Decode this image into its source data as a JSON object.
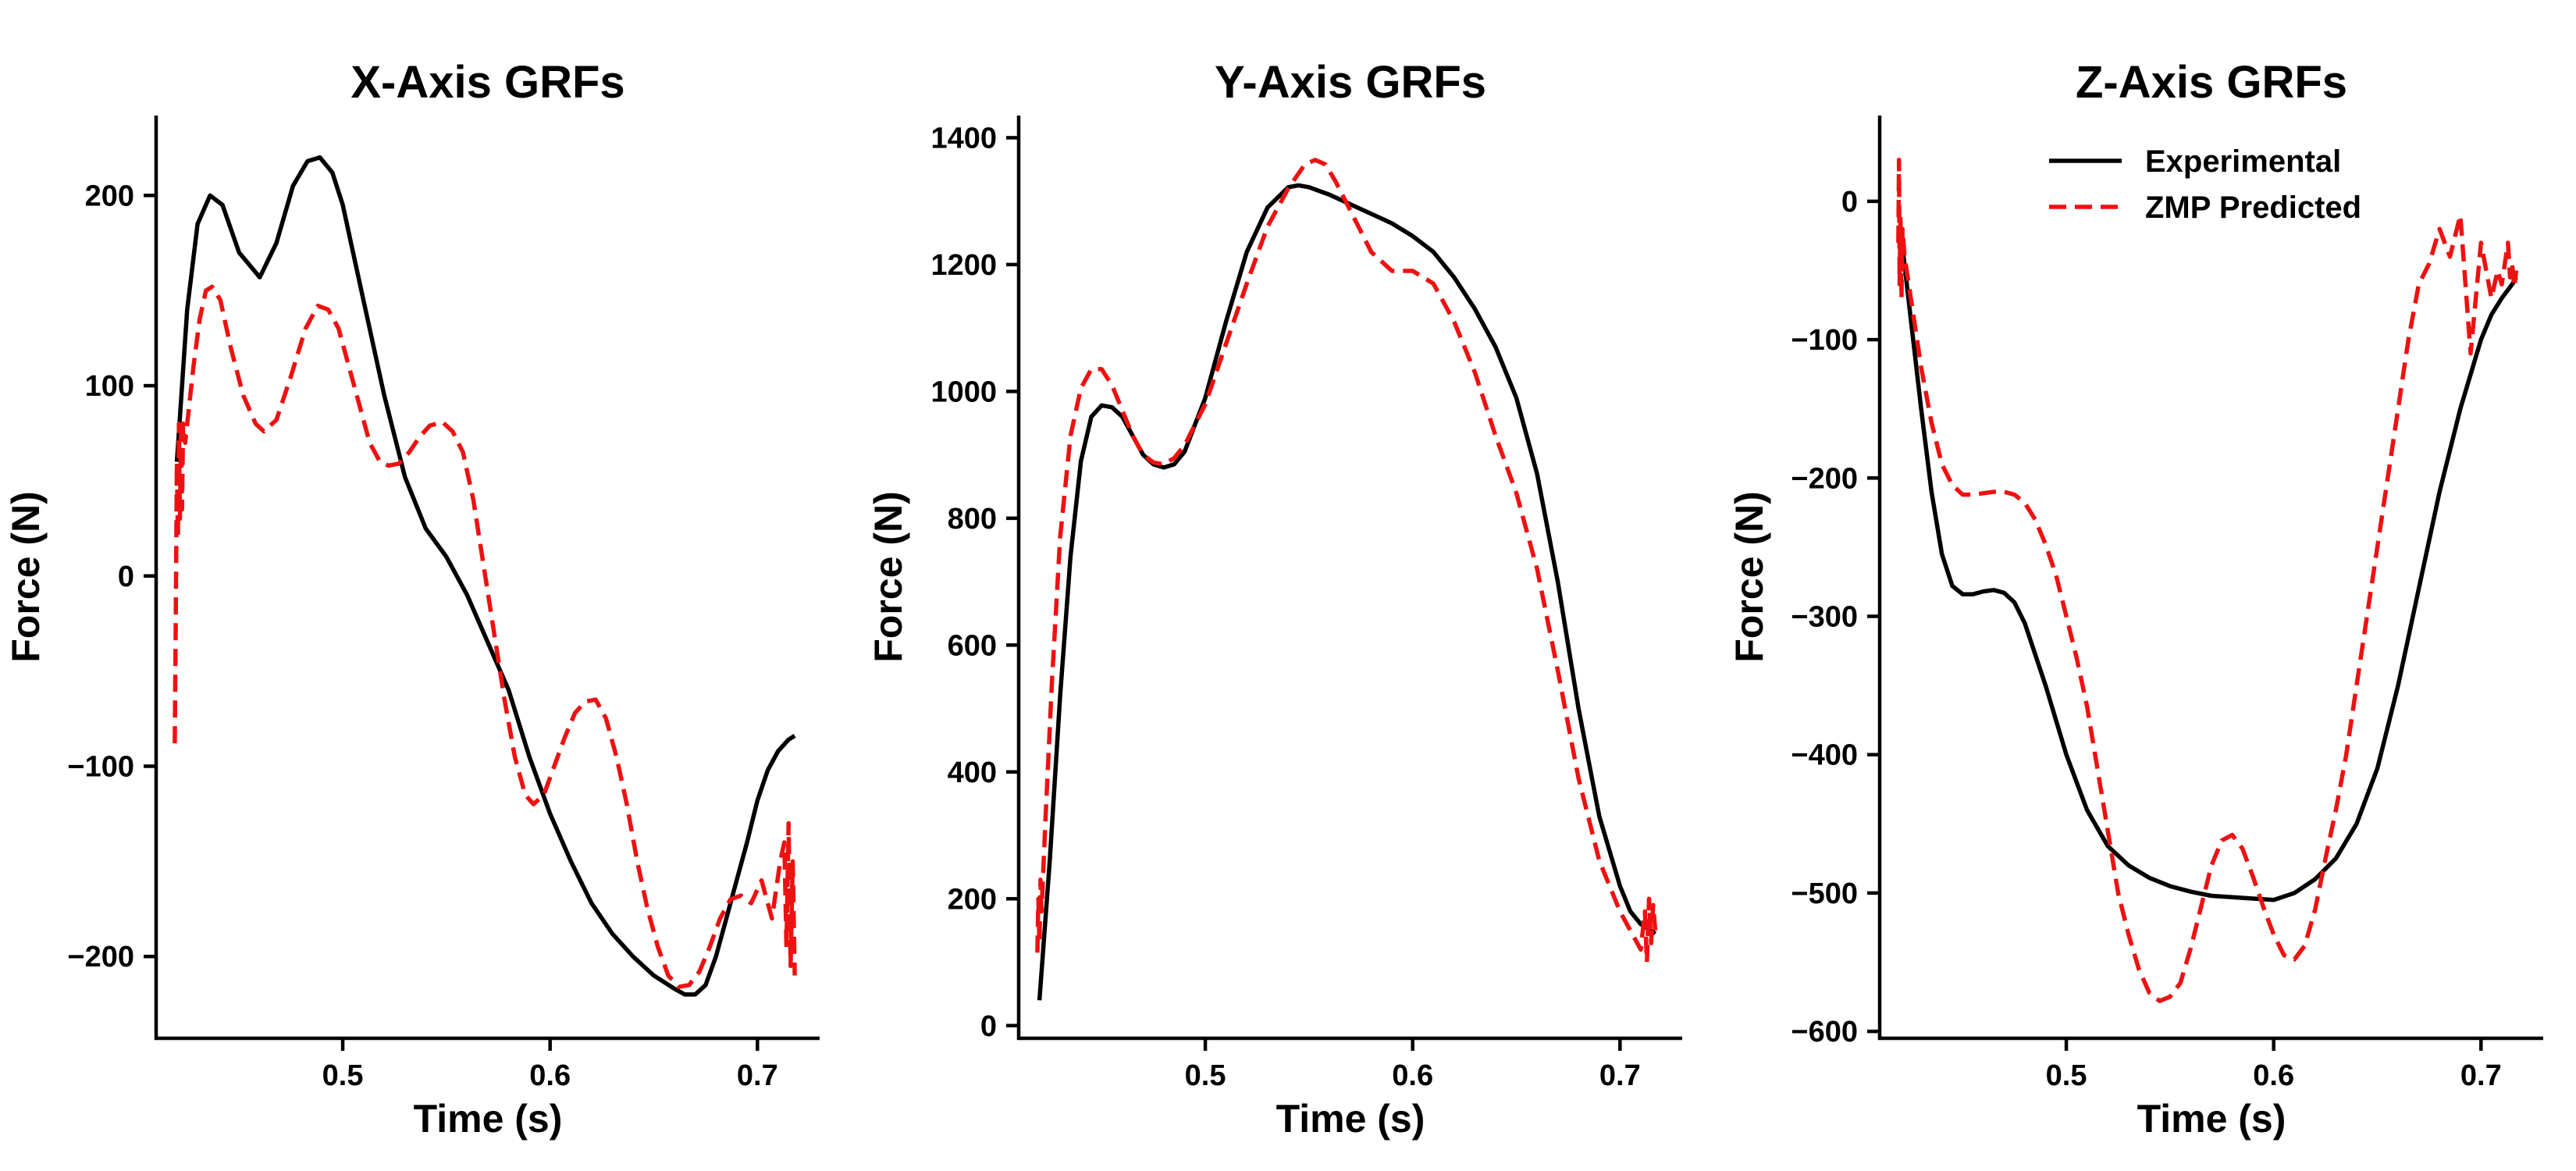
{
  "colors": {
    "experimental": "#000000",
    "zmp": "#ee1111"
  },
  "legend": {
    "placement": "top-right",
    "experimental": "Experimental",
    "zmp": "ZMP Predicted"
  },
  "chart_data": [
    {
      "type": "line",
      "title": "X-Axis GRFs",
      "xlabel": "Time (s)",
      "ylabel": "Force (N)",
      "xlim": [
        0.41,
        0.73
      ],
      "ylim": [
        -243,
        242
      ],
      "xticks": [
        0.5,
        0.6,
        0.7
      ],
      "xtick_labels": [
        "0.5",
        "0.6",
        "0.7"
      ],
      "yticks": [
        -200,
        -100,
        0,
        100,
        200
      ],
      "ytick_labels": [
        "−200",
        "−100",
        "0",
        "100",
        "200"
      ],
      "grid": false,
      "legend": false,
      "series": [
        {
          "name": "Experimental",
          "style": "solid",
          "x": [
            0.42,
            0.425,
            0.43,
            0.436,
            0.442,
            0.45,
            0.46,
            0.468,
            0.476,
            0.483,
            0.489,
            0.495,
            0.5,
            0.505,
            0.512,
            0.52,
            0.53,
            0.54,
            0.55,
            0.56,
            0.57,
            0.58,
            0.59,
            0.6,
            0.61,
            0.62,
            0.63,
            0.64,
            0.65,
            0.66,
            0.665,
            0.67,
            0.675,
            0.68,
            0.685,
            0.69,
            0.695,
            0.7,
            0.705,
            0.71,
            0.715,
            0.718
          ],
          "y": [
            60,
            140,
            185,
            200,
            195,
            170,
            157,
            175,
            205,
            218,
            220,
            212,
            195,
            170,
            135,
            95,
            52,
            25,
            10,
            -10,
            -35,
            -60,
            -95,
            -125,
            -150,
            -172,
            -188,
            -200,
            -210,
            -217,
            -220,
            -220,
            -215,
            -200,
            -180,
            -160,
            -140,
            -118,
            -102,
            -92,
            -86,
            -84
          ]
        },
        {
          "name": "ZMP Predicted",
          "style": "dashed",
          "x": [
            0.419,
            0.4195,
            0.42,
            0.4205,
            0.421,
            0.4215,
            0.422,
            0.4225,
            0.423,
            0.424,
            0.426,
            0.428,
            0.431,
            0.434,
            0.437,
            0.441,
            0.446,
            0.452,
            0.458,
            0.462,
            0.468,
            0.475,
            0.482,
            0.488,
            0.493,
            0.498,
            0.503,
            0.508,
            0.513,
            0.518,
            0.522,
            0.527,
            0.532,
            0.537,
            0.542,
            0.548,
            0.553,
            0.558,
            0.563,
            0.568,
            0.573,
            0.578,
            0.583,
            0.588,
            0.592,
            0.597,
            0.602,
            0.607,
            0.612,
            0.617,
            0.622,
            0.627,
            0.632,
            0.637,
            0.642,
            0.647,
            0.652,
            0.657,
            0.662,
            0.667,
            0.672,
            0.677,
            0.682,
            0.687,
            0.692,
            0.697,
            0.702,
            0.707,
            0.711,
            0.713,
            0.714,
            0.715,
            0.716,
            0.717,
            0.718
          ],
          "y": [
            -88,
            -20,
            60,
            20,
            80,
            30,
            75,
            35,
            80,
            70,
            90,
            110,
            135,
            150,
            152,
            145,
            120,
            95,
            80,
            76,
            82,
            105,
            130,
            142,
            140,
            130,
            110,
            90,
            70,
            60,
            58,
            59,
            65,
            73,
            79,
            81,
            76,
            65,
            40,
            5,
            -30,
            -65,
            -95,
            -115,
            -120,
            -115,
            -100,
            -85,
            -72,
            -66,
            -65,
            -75,
            -95,
            -120,
            -150,
            -175,
            -195,
            -210,
            -216,
            -215,
            -208,
            -195,
            -180,
            -170,
            -168,
            -172,
            -160,
            -180,
            -150,
            -140,
            -195,
            -130,
            -205,
            -150,
            -210
          ]
        }
      ]
    },
    {
      "type": "line",
      "title": "Y-Axis GRFs",
      "xlabel": "Time (s)",
      "ylabel": "Force (N)",
      "xlim": [
        0.41,
        0.73
      ],
      "ylim": [
        -20,
        1435
      ],
      "xticks": [
        0.5,
        0.6,
        0.7
      ],
      "xtick_labels": [
        "0.5",
        "0.6",
        "0.7"
      ],
      "yticks": [
        0,
        200,
        400,
        600,
        800,
        1000,
        1200,
        1400
      ],
      "ytick_labels": [
        "0",
        "200",
        "400",
        "600",
        "800",
        "1000",
        "1200",
        "1400"
      ],
      "grid": false,
      "legend": false,
      "series": [
        {
          "name": "Experimental",
          "style": "solid",
          "x": [
            0.42,
            0.425,
            0.43,
            0.435,
            0.44,
            0.445,
            0.45,
            0.455,
            0.46,
            0.465,
            0.47,
            0.475,
            0.48,
            0.485,
            0.49,
            0.5,
            0.51,
            0.52,
            0.53,
            0.54,
            0.545,
            0.55,
            0.56,
            0.57,
            0.58,
            0.59,
            0.6,
            0.61,
            0.62,
            0.63,
            0.64,
            0.65,
            0.66,
            0.67,
            0.68,
            0.69,
            0.7,
            0.705,
            0.71,
            0.715,
            0.717
          ],
          "y": [
            40,
            260,
            520,
            740,
            890,
            960,
            978,
            975,
            960,
            930,
            900,
            885,
            880,
            885,
            905,
            990,
            1110,
            1220,
            1290,
            1322,
            1325,
            1322,
            1310,
            1295,
            1280,
            1265,
            1245,
            1220,
            1180,
            1130,
            1070,
            990,
            870,
            700,
            500,
            330,
            220,
            180,
            160,
            150,
            145
          ]
        },
        {
          "name": "ZMP Predicted",
          "style": "dashed",
          "x": [
            0.419,
            0.4195,
            0.42,
            0.4205,
            0.421,
            0.423,
            0.426,
            0.43,
            0.435,
            0.44,
            0.445,
            0.45,
            0.455,
            0.46,
            0.465,
            0.47,
            0.475,
            0.48,
            0.485,
            0.49,
            0.5,
            0.51,
            0.52,
            0.53,
            0.54,
            0.548,
            0.553,
            0.558,
            0.563,
            0.57,
            0.58,
            0.59,
            0.6,
            0.61,
            0.62,
            0.63,
            0.64,
            0.65,
            0.66,
            0.67,
            0.68,
            0.69,
            0.7,
            0.705,
            0.71,
            0.712,
            0.713,
            0.714,
            0.715,
            0.716,
            0.717
          ],
          "y": [
            115,
            200,
            130,
            230,
            180,
            330,
            540,
            770,
            930,
            1005,
            1035,
            1035,
            1010,
            970,
            930,
            900,
            888,
            885,
            895,
            915,
            980,
            1075,
            1170,
            1260,
            1320,
            1358,
            1365,
            1358,
            1330,
            1285,
            1220,
            1190,
            1190,
            1170,
            1110,
            1030,
            930,
            840,
            720,
            560,
            390,
            260,
            180,
            150,
            120,
            180,
            100,
            200,
            130,
            190,
            150
          ]
        }
      ]
    },
    {
      "type": "line",
      "title": "Z-Axis GRFs",
      "xlabel": "Time (s)",
      "ylabel": "Force (N)",
      "xlim": [
        0.41,
        0.73
      ],
      "ylim": [
        -605,
        62
      ],
      "xticks": [
        0.5,
        0.6,
        0.7
      ],
      "xtick_labels": [
        "0.5",
        "0.6",
        "0.7"
      ],
      "yticks": [
        -600,
        -500,
        -400,
        -300,
        -200,
        -100,
        0
      ],
      "ytick_labels": [
        "−600",
        "−500",
        "−400",
        "−300",
        "−200",
        "−100",
        "0"
      ],
      "grid": false,
      "legend": true,
      "series": [
        {
          "name": "Experimental",
          "style": "solid",
          "x": [
            0.42,
            0.425,
            0.43,
            0.435,
            0.44,
            0.445,
            0.45,
            0.455,
            0.46,
            0.465,
            0.47,
            0.475,
            0.48,
            0.49,
            0.5,
            0.51,
            0.52,
            0.53,
            0.54,
            0.55,
            0.56,
            0.57,
            0.58,
            0.59,
            0.6,
            0.61,
            0.62,
            0.63,
            0.64,
            0.65,
            0.66,
            0.67,
            0.68,
            0.69,
            0.7,
            0.705,
            0.71,
            0.715,
            0.717
          ],
          "y": [
            -20,
            -85,
            -150,
            -210,
            -255,
            -278,
            -284,
            -284,
            -282,
            -281,
            -283,
            -290,
            -305,
            -350,
            -400,
            -440,
            -466,
            -480,
            -489,
            -495,
            -499,
            -502,
            -503,
            -504,
            -505,
            -500,
            -490,
            -475,
            -450,
            -410,
            -350,
            -280,
            -210,
            -150,
            -100,
            -82,
            -70,
            -60,
            -55
          ]
        },
        {
          "name": "ZMP Predicted",
          "style": "dashed",
          "x": [
            0.419,
            0.4193,
            0.4196,
            0.42,
            0.4205,
            0.421,
            0.422,
            0.424,
            0.427,
            0.43,
            0.435,
            0.44,
            0.445,
            0.45,
            0.455,
            0.46,
            0.465,
            0.47,
            0.475,
            0.48,
            0.485,
            0.49,
            0.495,
            0.5,
            0.505,
            0.51,
            0.515,
            0.52,
            0.525,
            0.53,
            0.535,
            0.54,
            0.545,
            0.55,
            0.555,
            0.56,
            0.565,
            0.57,
            0.575,
            0.58,
            0.585,
            0.59,
            0.595,
            0.6,
            0.605,
            0.61,
            0.615,
            0.62,
            0.625,
            0.63,
            0.635,
            0.64,
            0.645,
            0.65,
            0.655,
            0.66,
            0.665,
            0.67,
            0.675,
            0.68,
            0.685,
            0.69,
            0.695,
            0.7,
            0.705,
            0.708,
            0.71,
            0.711,
            0.712,
            0.713,
            0.714,
            0.715,
            0.716,
            0.717
          ],
          "y": [
            -30,
            30,
            -60,
            -10,
            -70,
            -20,
            -40,
            -60,
            -90,
            -120,
            -160,
            -190,
            -205,
            -212,
            -212,
            -211,
            -210,
            -210,
            -212,
            -218,
            -230,
            -248,
            -270,
            -300,
            -330,
            -365,
            -410,
            -455,
            -500,
            -530,
            -555,
            -572,
            -578,
            -575,
            -565,
            -540,
            -510,
            -480,
            -462,
            -458,
            -468,
            -488,
            -510,
            -530,
            -545,
            -548,
            -538,
            -512,
            -475,
            -440,
            -400,
            -350,
            -300,
            -250,
            -200,
            -150,
            -100,
            -60,
            -45,
            -20,
            -40,
            -10,
            -110,
            -30,
            -70,
            -50,
            -60,
            -50,
            -40,
            -30,
            -55,
            -45,
            -62,
            -50
          ]
        }
      ]
    }
  ]
}
